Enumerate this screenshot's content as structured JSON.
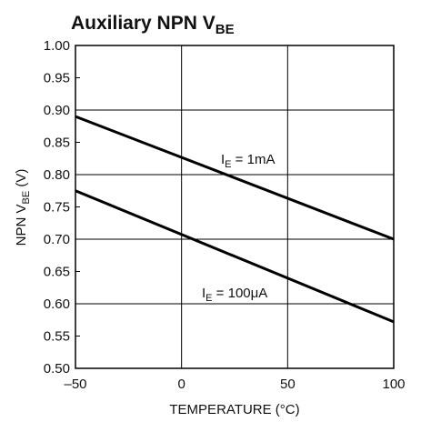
{
  "chart_data": {
    "type": "line",
    "title": [
      "Auxiliary NPN V",
      "BE"
    ],
    "x_label": "TEMPERATURE (°C)",
    "y_label": [
      "NPN V",
      "BE",
      " (V)"
    ],
    "x": [
      -50,
      100
    ],
    "series": [
      {
        "name": [
          "I",
          "E",
          " = 1mA"
        ],
        "color": "#000000",
        "values": [
          0.89,
          0.7
        ]
      },
      {
        "name": [
          "I",
          "E",
          " = 100μA"
        ],
        "color": "#000000",
        "values": [
          0.775,
          0.572
        ]
      }
    ],
    "xlim": [
      -50,
      100
    ],
    "xticks": [
      {
        "value": -50,
        "label": "–50"
      },
      0,
      50,
      100
    ],
    "ylim": [
      0.5,
      1.0
    ],
    "yticks": [
      {
        "value": 0.5,
        "label": "0.50"
      },
      0.55,
      {
        "value": 0.6,
        "label": "0.60"
      },
      0.65,
      {
        "value": 0.7,
        "label": "0.70"
      },
      0.75,
      {
        "value": 0.8,
        "label": "0.80"
      },
      0.85,
      {
        "value": 0.9,
        "label": "0.90"
      },
      0.95,
      {
        "value": 1.0,
        "label": "1.00"
      }
    ],
    "grid": true
  }
}
